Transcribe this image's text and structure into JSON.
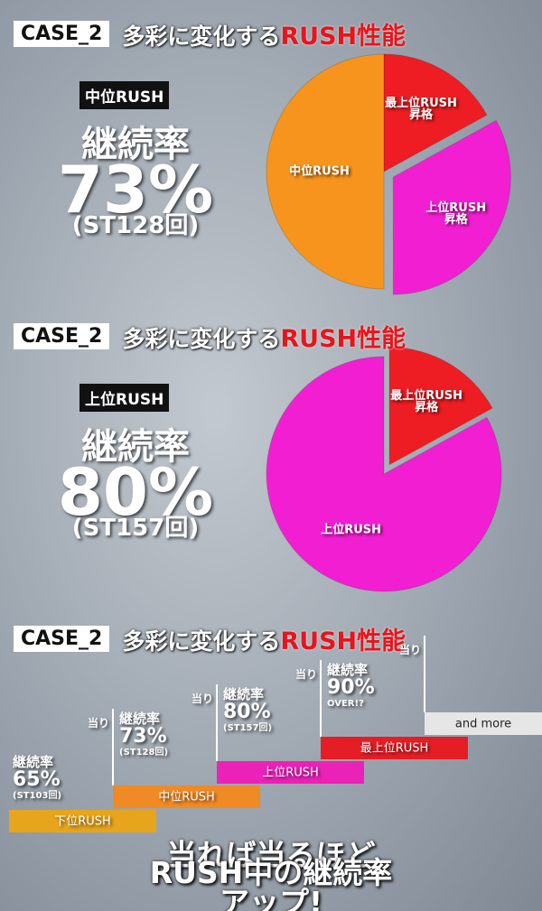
{
  "headers": [
    {
      "case": "CASE_2",
      "text": "多彩に変化する",
      "highlight": "RUSH性能"
    },
    {
      "case": "CASE_2",
      "text": "多彩に変化する",
      "highlight": "RUSH性能"
    },
    {
      "case": "CASE_2",
      "text": "多彩に変化する",
      "highlight": "RUSH性能"
    }
  ],
  "panels": [
    {
      "badge": "中位RUSH",
      "rate_title": "継続率",
      "rate": "73%",
      "note": "(ST128回)"
    },
    {
      "badge": "上位RUSH",
      "rate_title": "継続率",
      "rate": "80%",
      "note": "(ST157回)"
    }
  ],
  "chart_data": [
    {
      "type": "pie",
      "categories": [
        "最上位RUSH\n昇格",
        "上位RUSH\n昇格",
        "中位RUSH"
      ],
      "values": [
        17,
        33,
        50
      ],
      "colors": [
        "#ee1d23",
        "#f21fd2",
        "#f7941d"
      ],
      "explode": [
        0,
        1,
        0
      ]
    },
    {
      "type": "pie",
      "categories": [
        "最上位RUSH\n昇格",
        "上位RUSH"
      ],
      "values": [
        17,
        83
      ],
      "colors": [
        "#ee1d23",
        "#f21fd2"
      ],
      "explode": [
        1,
        0
      ]
    }
  ],
  "ladder": {
    "steps": [
      {
        "bar": "下位RUSH",
        "color": "#e6a51c",
        "rate_title": "継続率",
        "rate": "65%",
        "note": "(ST103回)"
      },
      {
        "hit": "当り",
        "bar": "中位RUSH",
        "color": "#f08a24",
        "rate_title": "継続率",
        "rate": "73%",
        "note": "(ST128回)"
      },
      {
        "hit": "当り",
        "bar": "上位RUSH",
        "color": "#ea22b8",
        "rate_title": "継続率",
        "rate": "80%",
        "note": "(ST157回)"
      },
      {
        "hit": "当り",
        "bar": "最上位RUSH",
        "color": "#e51e25",
        "rate_title": "継続率",
        "rate": "90%",
        "note": "OVER!?"
      },
      {
        "hit": "当り",
        "bar": "and more",
        "color": "#e6e6e6"
      }
    ],
    "footer": [
      "当れば当るほど",
      "RUSH中の継続率アップ!"
    ]
  }
}
